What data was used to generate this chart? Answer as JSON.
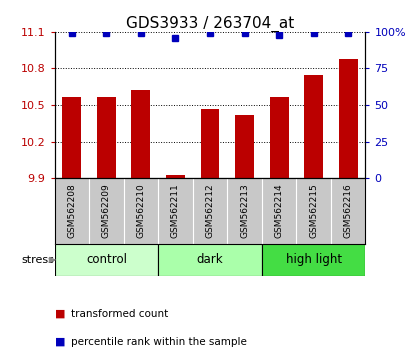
{
  "title": "GDS3933 / 263704_at",
  "samples": [
    "GSM562208",
    "GSM562209",
    "GSM562210",
    "GSM562211",
    "GSM562212",
    "GSM562213",
    "GSM562214",
    "GSM562215",
    "GSM562216"
  ],
  "transformed_counts": [
    10.57,
    10.57,
    10.62,
    9.93,
    10.47,
    10.42,
    10.57,
    10.75,
    10.88
  ],
  "percentile_ranks": [
    99,
    99,
    99,
    96,
    99,
    99,
    98,
    99,
    99
  ],
  "ylim_left": [
    9.9,
    11.1
  ],
  "ylim_right": [
    0,
    100
  ],
  "yticks_left": [
    9.9,
    10.2,
    10.5,
    10.8,
    11.1
  ],
  "yticks_right": [
    0,
    25,
    50,
    75,
    100
  ],
  "groups": [
    {
      "label": "control",
      "samples": [
        0,
        1,
        2
      ],
      "color": "#ccffcc"
    },
    {
      "label": "dark",
      "samples": [
        3,
        4,
        5
      ],
      "color": "#aaffaa"
    },
    {
      "label": "high light",
      "samples": [
        6,
        7,
        8
      ],
      "color": "#44dd44"
    }
  ],
  "bar_color": "#bb0000",
  "dot_color": "#0000bb",
  "bar_width": 0.55,
  "stress_label": "stress",
  "legend_items": [
    {
      "color": "#bb0000",
      "label": "transformed count"
    },
    {
      "color": "#0000bb",
      "label": "percentile rank within the sample"
    }
  ],
  "background_color": "#ffffff",
  "sample_box_color": "#c8c8c8",
  "title_fontsize": 11,
  "tick_fontsize": 8,
  "label_fontsize": 8
}
